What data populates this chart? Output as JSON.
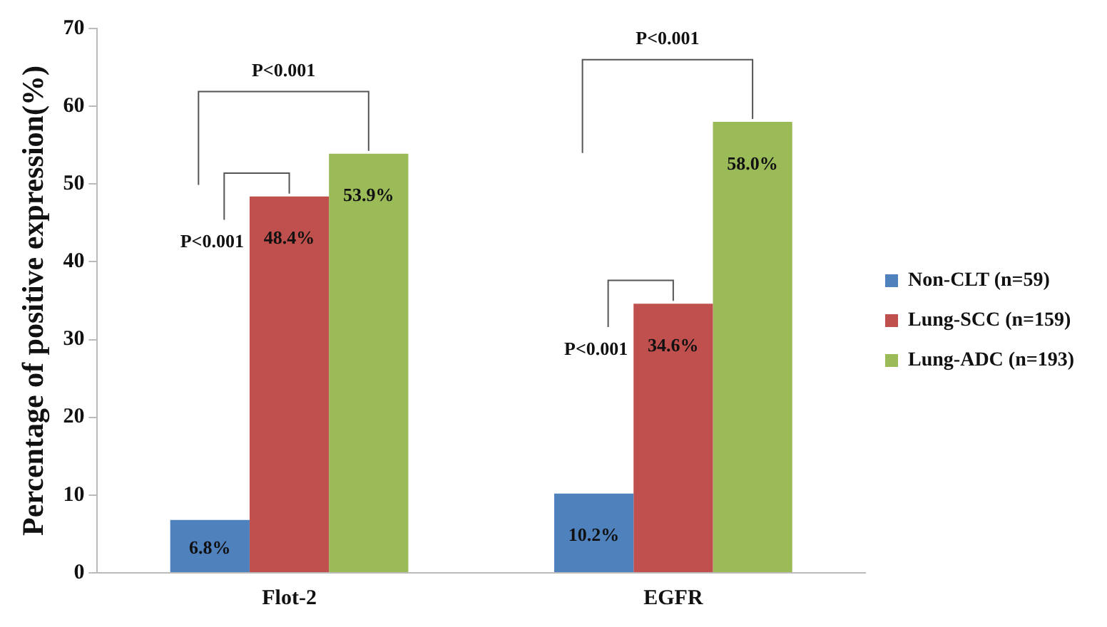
{
  "chart_data": {
    "type": "bar",
    "ylabel": "Percentage of positive expression(%)",
    "categories": [
      "Flot-2",
      "EGFR"
    ],
    "series": [
      {
        "name": "Non-CLT (n=59)",
        "color": "#4f81bd",
        "values": [
          6.8,
          10.2
        ],
        "value_labels": [
          "6.8%",
          "10.2%"
        ]
      },
      {
        "name": "Lung-SCC (n=159)",
        "color": "#c0504d",
        "values": [
          48.4,
          34.6
        ],
        "value_labels": [
          "48.4%",
          "34.6%"
        ]
      },
      {
        "name": "Lung-ADC (n=193)",
        "color": "#9bbb59",
        "values": [
          53.9,
          58.0
        ],
        "value_labels": [
          "53.9%",
          "58.0%"
        ]
      }
    ],
    "ylim": [
      0,
      70
    ],
    "yticks": [
      0,
      10,
      20,
      30,
      40,
      50,
      60,
      70
    ],
    "grid": false,
    "legend": "right",
    "annotations": [
      {
        "text": "P<0.001",
        "x": "Flot-2",
        "y": 48.4
      },
      "P<0.001",
      {
        "text": "P<0.001",
        "x": "EGFR",
        "y": 34.6
      },
      "P<0.001"
    ]
  }
}
